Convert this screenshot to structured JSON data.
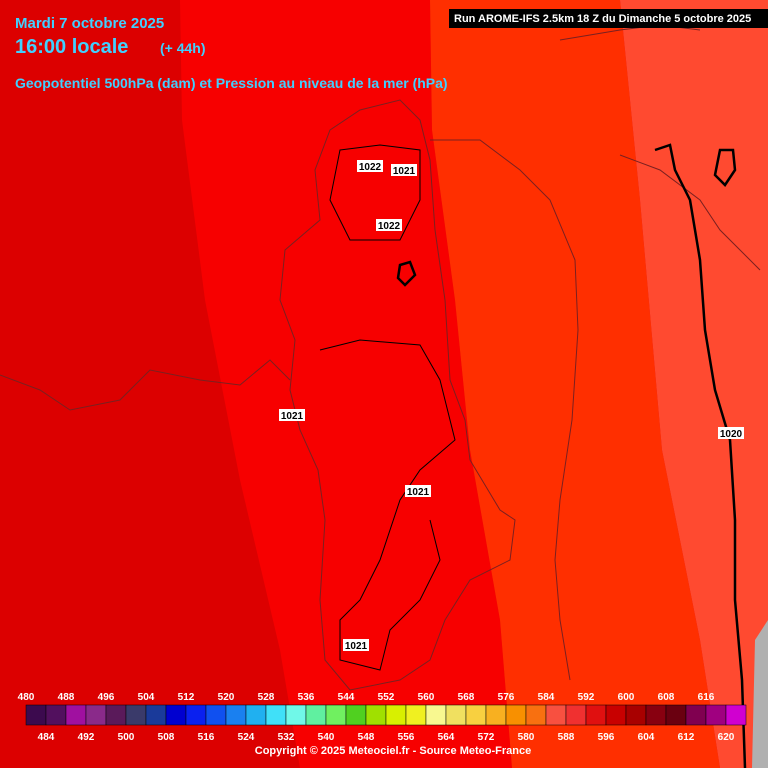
{
  "header": {
    "date": "Mardi 7 octobre 2025",
    "time": "16:00 locale",
    "lead": "(+ 44h)",
    "subtitle": "Geopotentiel 500hPa (dam) et Pression au niveau de la mer (hPa)",
    "run": "Run AROME-IFS 2.5km 18 Z du Dimanche 5 octobre 2025"
  },
  "isobar_labels": [
    "1022",
    "1021",
    "1022",
    "1021",
    "1021",
    "1021",
    "1020"
  ],
  "legend": {
    "top_labels": [
      480,
      488,
      496,
      504,
      512,
      520,
      528,
      536,
      544,
      552,
      560,
      568,
      576,
      584,
      592,
      600,
      608,
      616
    ],
    "bottom_labels": [
      484,
      492,
      500,
      508,
      516,
      524,
      532,
      540,
      548,
      556,
      564,
      572,
      580,
      588,
      596,
      604,
      612,
      620
    ],
    "colors": [
      "#3c0a4e",
      "#52105e",
      "#a010a0",
      "#8a2a8a",
      "#5a1a5a",
      "#3a3a6a",
      "#1a3a9a",
      "#0000d0",
      "#0a20f0",
      "#1050f0",
      "#1a80f0",
      "#20b0f0",
      "#40e0f8",
      "#70f8e8",
      "#60f0a0",
      "#70f060",
      "#50d020",
      "#a0e000",
      "#d8f000",
      "#f0f020",
      "#f8f890",
      "#f0e060",
      "#f8d040",
      "#f8b020",
      "#f89000",
      "#f87010",
      "#f85040",
      "#f03030",
      "#e01010",
      "#c80000",
      "#a80000",
      "#880010",
      "#6a0010",
      "#800050",
      "#a00080",
      "#d000d0"
    ]
  },
  "copyright": "Copyright © 2025 Meteociel.fr - Source Meteo-France"
}
